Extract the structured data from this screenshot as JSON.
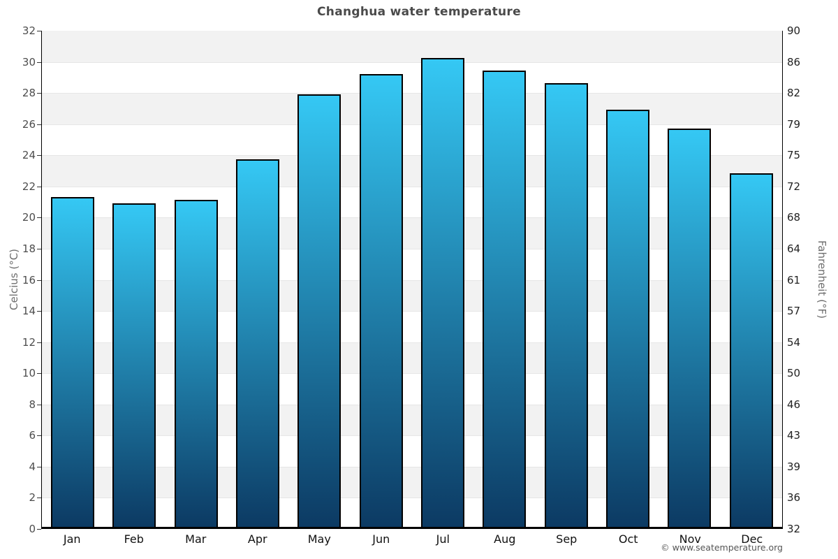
{
  "title": "Changhua water temperature",
  "copyright": "© www.seatemperature.org",
  "chart_data": {
    "type": "bar",
    "title": "Changhua water temperature",
    "categories": [
      "Jan",
      "Feb",
      "Mar",
      "Apr",
      "May",
      "Jun",
      "Jul",
      "Aug",
      "Sep",
      "Oct",
      "Nov",
      "Dec"
    ],
    "values": [
      21.2,
      20.8,
      21.0,
      23.6,
      27.8,
      29.1,
      30.1,
      29.3,
      28.5,
      26.8,
      25.6,
      22.7
    ],
    "unit": "°C",
    "ylabel_left": "Celcius (°C)",
    "ylabel_right": "Fahrenheit (°F)",
    "ylim": [
      0,
      32
    ],
    "ytick_step": 2,
    "left_tick_labels": [
      "32",
      "30",
      "28",
      "26",
      "24",
      "22",
      "20",
      "18",
      "16",
      "14",
      "12",
      "10",
      "8",
      "6",
      "4",
      "2",
      "0"
    ],
    "right_tick_labels": [
      "90",
      "86",
      "82",
      "79",
      "75",
      "72",
      "68",
      "64",
      "61",
      "57",
      "54",
      "50",
      "46",
      "43",
      "39",
      "36",
      "32"
    ],
    "grid": true,
    "legend": "none",
    "band_pattern": "alternating gray bands every 2 units, gray between 30-32, 26-28, 22-24, 18-20, 14-16, 10-12, 6-8, 2-4",
    "colors": {
      "bar_gradient_top": "#35c8f4",
      "bar_gradient_bottom": "#0c3a63",
      "bar_border": "#000000",
      "band_fill": "#f2f2f2",
      "gridline": "#e6e6e6",
      "axis_line": "#000000",
      "title_text": "#4a4a4a",
      "tick_text": "#4d4d4d",
      "month_text": "#111111",
      "axis_title_text": "#6e6e6e",
      "copyright_text": "#555555"
    }
  }
}
